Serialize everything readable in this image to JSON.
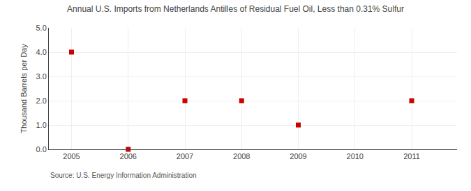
{
  "chart_data": {
    "type": "scatter",
    "title": "Annual U.S. Imports from Netherlands Antilles of Residual Fuel Oil, Less than 0.31% Sulfur",
    "ylabel": "Thousand Barrels per Day",
    "annotations": [
      "Source: U.S. Energy Information Administration"
    ],
    "x": [
      2005,
      2006,
      2007,
      2008,
      2009,
      2011
    ],
    "values": [
      4.0,
      0.0,
      2.0,
      2.0,
      1.0,
      2.0
    ],
    "color": "#cc0000",
    "marker": "square",
    "xlim": [
      2004.6,
      2011.8
    ],
    "xticks": [
      2005,
      2006,
      2007,
      2008,
      2009,
      2010,
      2011
    ],
    "ylim": [
      0.0,
      5.0
    ],
    "yticks": [
      {
        "value": 0.0,
        "label": "0.0"
      },
      {
        "value": 1.0,
        "label": "1.0"
      },
      {
        "value": 2.0,
        "label": "2.0"
      },
      {
        "value": 3.0,
        "label": "3.0"
      },
      {
        "value": 4.0,
        "label": "4.0"
      },
      {
        "value": 5.0,
        "label": "5.0"
      }
    ],
    "grid": true
  }
}
